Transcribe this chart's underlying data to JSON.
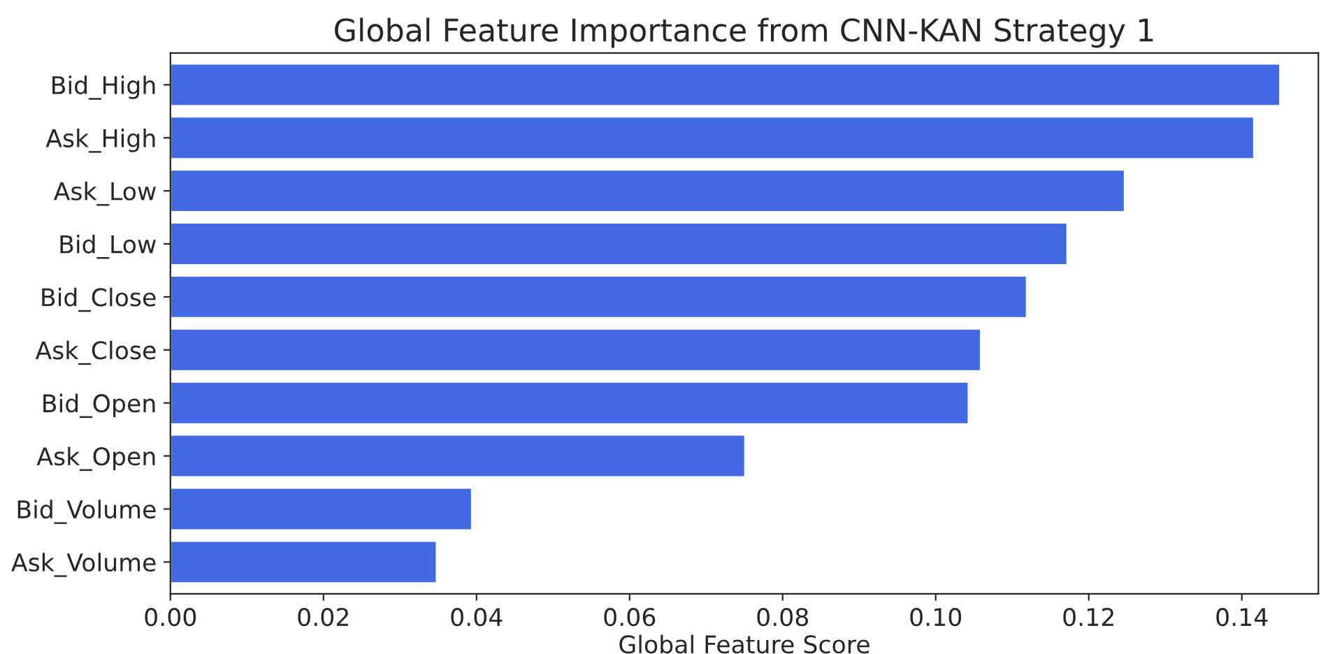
{
  "chart_data": {
    "type": "bar",
    "orientation": "horizontal",
    "title": "Global Feature Importance from CNN-KAN Strategy 1",
    "xlabel": "Global Feature Score",
    "categories": [
      "Bid_High",
      "Ask_High",
      "Ask_Low",
      "Bid_Low",
      "Bid_Close",
      "Ask_Close",
      "Bid_Open",
      "Ask_Open",
      "Bid_Volume",
      "Ask_Volume"
    ],
    "values": [
      0.145,
      0.1416,
      0.1247,
      0.1172,
      0.1119,
      0.1059,
      0.1043,
      0.0751,
      0.0394,
      0.0348
    ],
    "color": "#4169e1",
    "xlim": [
      0,
      0.15
    ],
    "xticks": [
      {
        "value": 0,
        "label": "0.00"
      },
      {
        "value": 0.02,
        "label": "0.02"
      },
      {
        "value": 0.04,
        "label": "0.04"
      },
      {
        "value": 0.06,
        "label": "0.06"
      },
      {
        "value": 0.08,
        "label": "0.08"
      },
      {
        "value": 0.1,
        "label": "0.10"
      },
      {
        "value": 0.12,
        "label": "0.12"
      },
      {
        "value": 0.14,
        "label": "0.14"
      }
    ],
    "grid": false,
    "legend": false
  }
}
